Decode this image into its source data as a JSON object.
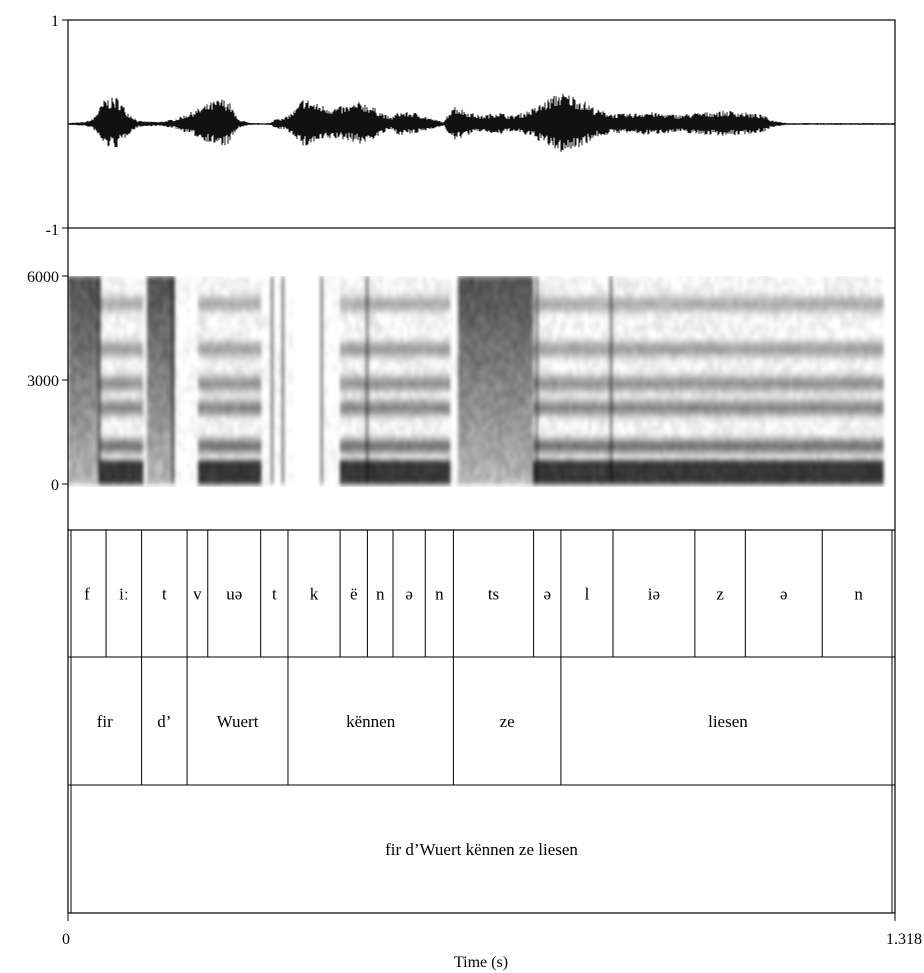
{
  "waveform": {
    "y_max_label": "1",
    "y_min_label": "-1",
    "envelope": [
      [
        0.0,
        0.01
      ],
      [
        0.02,
        0.02
      ],
      [
        0.03,
        0.05
      ],
      [
        0.045,
        0.25
      ],
      [
        0.06,
        0.26
      ],
      [
        0.072,
        0.12
      ],
      [
        0.085,
        0.03
      ],
      [
        0.11,
        0.02
      ],
      [
        0.13,
        0.05
      ],
      [
        0.15,
        0.12
      ],
      [
        0.17,
        0.2
      ],
      [
        0.185,
        0.25
      ],
      [
        0.195,
        0.22
      ],
      [
        0.205,
        0.05
      ],
      [
        0.22,
        0.01
      ],
      [
        0.245,
        0.01
      ],
      [
        0.253,
        0.07
      ],
      [
        0.26,
        0.05
      ],
      [
        0.275,
        0.14
      ],
      [
        0.285,
        0.26
      ],
      [
        0.3,
        0.2
      ],
      [
        0.32,
        0.16
      ],
      [
        0.34,
        0.18
      ],
      [
        0.355,
        0.22
      ],
      [
        0.37,
        0.16
      ],
      [
        0.39,
        0.06
      ],
      [
        0.4,
        0.12
      ],
      [
        0.42,
        0.11
      ],
      [
        0.44,
        0.05
      ],
      [
        0.455,
        0.02
      ],
      [
        0.465,
        0.19
      ],
      [
        0.48,
        0.13
      ],
      [
        0.5,
        0.08
      ],
      [
        0.52,
        0.12
      ],
      [
        0.535,
        0.08
      ],
      [
        0.55,
        0.11
      ],
      [
        0.565,
        0.16
      ],
      [
        0.58,
        0.24
      ],
      [
        0.595,
        0.31
      ],
      [
        0.61,
        0.28
      ],
      [
        0.625,
        0.22
      ],
      [
        0.64,
        0.14
      ],
      [
        0.66,
        0.1
      ],
      [
        0.68,
        0.1
      ],
      [
        0.7,
        0.12
      ],
      [
        0.72,
        0.1
      ],
      [
        0.74,
        0.09
      ],
      [
        0.76,
        0.11
      ],
      [
        0.78,
        0.12
      ],
      [
        0.8,
        0.13
      ],
      [
        0.82,
        0.11
      ],
      [
        0.84,
        0.09
      ],
      [
        0.85,
        0.04
      ],
      [
        0.87,
        0.01
      ],
      [
        1.0,
        0.01
      ]
    ]
  },
  "spectrogram": {
    "y_ticks": [
      {
        "value": 6000,
        "label": "6000"
      },
      {
        "value": 3000,
        "label": "3000"
      },
      {
        "value": 0,
        "label": "0"
      }
    ],
    "y_max": 6000
  },
  "tiers": {
    "phones": [
      {
        "start": 0.0,
        "end": 0.046,
        "label": "f"
      },
      {
        "start": 0.046,
        "end": 0.089,
        "label": "iː"
      },
      {
        "start": 0.089,
        "end": 0.144,
        "label": "t"
      },
      {
        "start": 0.144,
        "end": 0.169,
        "label": "v"
      },
      {
        "start": 0.169,
        "end": 0.233,
        "label": "uə"
      },
      {
        "start": 0.233,
        "end": 0.266,
        "label": "t"
      },
      {
        "start": 0.266,
        "end": 0.329,
        "label": "k"
      },
      {
        "start": 0.329,
        "end": 0.362,
        "label": "ë"
      },
      {
        "start": 0.362,
        "end": 0.393,
        "label": "n"
      },
      {
        "start": 0.393,
        "end": 0.432,
        "label": "ə"
      },
      {
        "start": 0.432,
        "end": 0.466,
        "label": "n"
      },
      {
        "start": 0.466,
        "end": 0.563,
        "label": "ts"
      },
      {
        "start": 0.563,
        "end": 0.596,
        "label": "ə"
      },
      {
        "start": 0.596,
        "end": 0.659,
        "label": "l"
      },
      {
        "start": 0.659,
        "end": 0.758,
        "label": "iə"
      },
      {
        "start": 0.758,
        "end": 0.819,
        "label": "z"
      },
      {
        "start": 0.819,
        "end": 0.912,
        "label": "ə"
      },
      {
        "start": 0.912,
        "end": 1.0,
        "label": "n"
      }
    ],
    "words": [
      {
        "start": 0.0,
        "end": 0.089,
        "label": "fir"
      },
      {
        "start": 0.089,
        "end": 0.144,
        "label": "d’"
      },
      {
        "start": 0.144,
        "end": 0.266,
        "label": "Wuert"
      },
      {
        "start": 0.266,
        "end": 0.466,
        "label": "kënnen"
      },
      {
        "start": 0.466,
        "end": 0.596,
        "label": "ze"
      },
      {
        "start": 0.596,
        "end": 1.0,
        "label": "liesen"
      }
    ],
    "sentence": [
      {
        "start": 0.0,
        "end": 1.0,
        "label": "fir d’Wuert kënnen ze liesen"
      }
    ]
  },
  "time_axis": {
    "start_label": "0",
    "end_label": "1.318",
    "title": "Time (s)"
  }
}
